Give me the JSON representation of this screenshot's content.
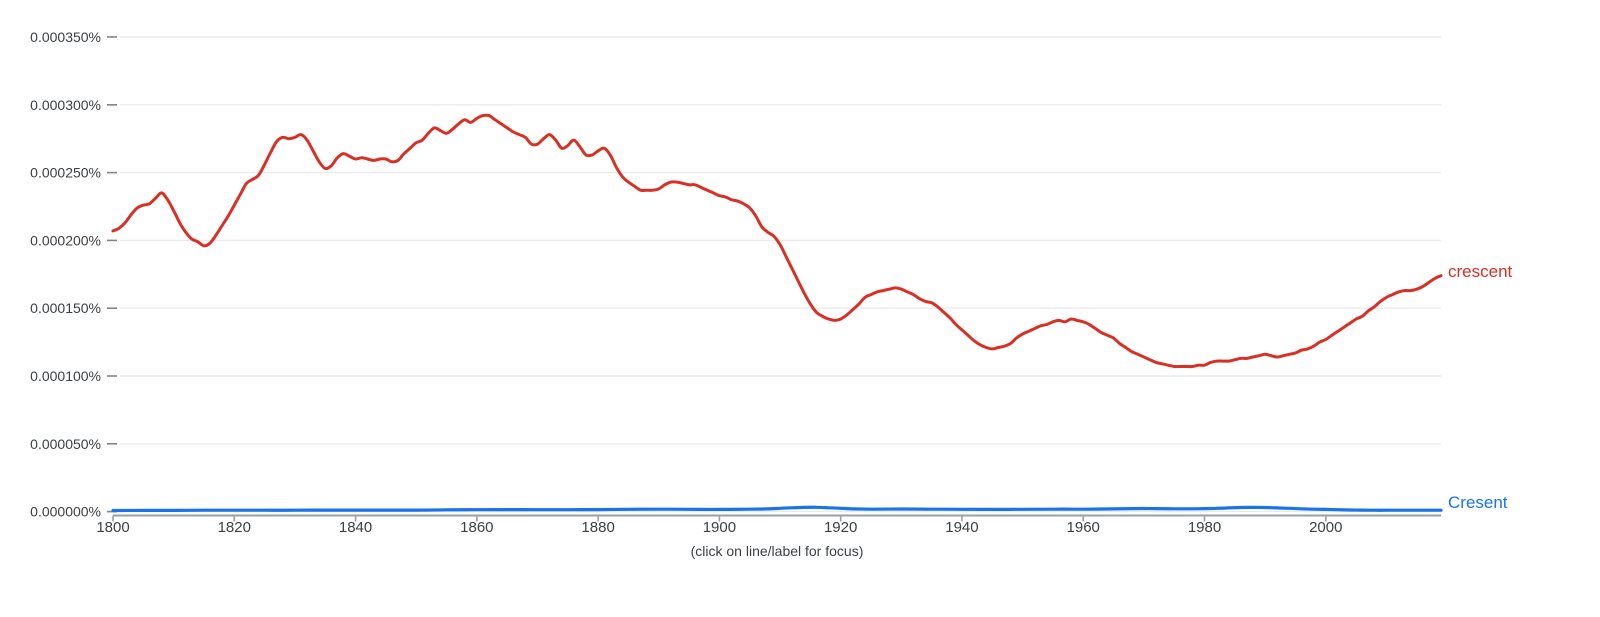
{
  "footer": {
    "hint": "(click on line/label for focus)"
  },
  "chart_data": {
    "type": "line",
    "title": "",
    "xlabel": "",
    "ylabel": "",
    "grid": true,
    "legend_position": "right-of-line-end",
    "x_range": [
      1800,
      2019
    ],
    "y_range_e6_percent": [
      0,
      350
    ],
    "x_ticks": [
      {
        "label": "1800",
        "year": 1800
      },
      {
        "label": "1820",
        "year": 1820
      },
      {
        "label": "1840",
        "year": 1840
      },
      {
        "label": "1860",
        "year": 1860
      },
      {
        "label": "1880",
        "year": 1880
      },
      {
        "label": "1900",
        "year": 1900
      },
      {
        "label": "1920",
        "year": 1920
      },
      {
        "label": "1940",
        "year": 1940
      },
      {
        "label": "1960",
        "year": 1960
      },
      {
        "label": "1980",
        "year": 1980
      },
      {
        "label": "2000",
        "year": 2000
      }
    ],
    "y_ticks": [
      {
        "label": "0.000350%",
        "value": 350
      },
      {
        "label": "0.000300%",
        "value": 300
      },
      {
        "label": "0.000250%",
        "value": 250
      },
      {
        "label": "0.000200%",
        "value": 200
      },
      {
        "label": "0.000150%",
        "value": 150
      },
      {
        "label": "0.000100%",
        "value": 100
      },
      {
        "label": "0.000050%",
        "value": 50
      },
      {
        "label": "0.000000%",
        "value": 0
      }
    ],
    "value_unit": "percent x 1e-6",
    "series": [
      {
        "name": "crescent",
        "color": "#d93025",
        "points": [
          [
            1800,
            207
          ],
          [
            1801,
            209
          ],
          [
            1802,
            213
          ],
          [
            1803,
            219
          ],
          [
            1804,
            224
          ],
          [
            1805,
            226
          ],
          [
            1806,
            227
          ],
          [
            1807,
            231
          ],
          [
            1808,
            235
          ],
          [
            1809,
            230
          ],
          [
            1810,
            222
          ],
          [
            1811,
            213
          ],
          [
            1812,
            206
          ],
          [
            1813,
            201
          ],
          [
            1814,
            199
          ],
          [
            1815,
            196
          ],
          [
            1816,
            198
          ],
          [
            1817,
            204
          ],
          [
            1818,
            211
          ],
          [
            1819,
            218
          ],
          [
            1820,
            226
          ],
          [
            1821,
            234
          ],
          [
            1822,
            242
          ],
          [
            1823,
            245
          ],
          [
            1824,
            248
          ],
          [
            1825,
            256
          ],
          [
            1826,
            265
          ],
          [
            1827,
            273
          ],
          [
            1828,
            276
          ],
          [
            1829,
            275
          ],
          [
            1830,
            276
          ],
          [
            1831,
            278
          ],
          [
            1832,
            274
          ],
          [
            1833,
            266
          ],
          [
            1834,
            258
          ],
          [
            1835,
            253
          ],
          [
            1836,
            255
          ],
          [
            1837,
            261
          ],
          [
            1838,
            264
          ],
          [
            1839,
            262
          ],
          [
            1840,
            260
          ],
          [
            1841,
            261
          ],
          [
            1842,
            260
          ],
          [
            1843,
            259
          ],
          [
            1844,
            260
          ],
          [
            1845,
            260
          ],
          [
            1846,
            258
          ],
          [
            1847,
            259
          ],
          [
            1848,
            264
          ],
          [
            1849,
            268
          ],
          [
            1850,
            272
          ],
          [
            1851,
            274
          ],
          [
            1852,
            279
          ],
          [
            1853,
            283
          ],
          [
            1854,
            281
          ],
          [
            1855,
            279
          ],
          [
            1856,
            282
          ],
          [
            1857,
            286
          ],
          [
            1858,
            289
          ],
          [
            1859,
            287
          ],
          [
            1860,
            290
          ],
          [
            1861,
            292
          ],
          [
            1862,
            292
          ],
          [
            1863,
            289
          ],
          [
            1864,
            286
          ],
          [
            1865,
            283
          ],
          [
            1866,
            280
          ],
          [
            1867,
            278
          ],
          [
            1868,
            276
          ],
          [
            1869,
            271
          ],
          [
            1870,
            271
          ],
          [
            1871,
            275
          ],
          [
            1872,
            278
          ],
          [
            1873,
            274
          ],
          [
            1874,
            268
          ],
          [
            1875,
            270
          ],
          [
            1876,
            274
          ],
          [
            1877,
            269
          ],
          [
            1878,
            263
          ],
          [
            1879,
            263
          ],
          [
            1880,
            266
          ],
          [
            1881,
            268
          ],
          [
            1882,
            263
          ],
          [
            1883,
            254
          ],
          [
            1884,
            247
          ],
          [
            1885,
            243
          ],
          [
            1886,
            240
          ],
          [
            1887,
            237
          ],
          [
            1888,
            237
          ],
          [
            1889,
            237
          ],
          [
            1890,
            238
          ],
          [
            1891,
            241
          ],
          [
            1892,
            243
          ],
          [
            1893,
            243
          ],
          [
            1894,
            242
          ],
          [
            1895,
            241
          ],
          [
            1896,
            241
          ],
          [
            1897,
            239
          ],
          [
            1898,
            237
          ],
          [
            1899,
            235
          ],
          [
            1900,
            233
          ],
          [
            1901,
            232
          ],
          [
            1902,
            230
          ],
          [
            1903,
            229
          ],
          [
            1904,
            227
          ],
          [
            1905,
            224
          ],
          [
            1906,
            218
          ],
          [
            1907,
            210
          ],
          [
            1908,
            206
          ],
          [
            1909,
            203
          ],
          [
            1910,
            197
          ],
          [
            1911,
            188
          ],
          [
            1912,
            179
          ],
          [
            1913,
            170
          ],
          [
            1914,
            161
          ],
          [
            1915,
            153
          ],
          [
            1916,
            147
          ],
          [
            1917,
            144
          ],
          [
            1918,
            142
          ],
          [
            1919,
            141
          ],
          [
            1920,
            142
          ],
          [
            1921,
            145
          ],
          [
            1922,
            149
          ],
          [
            1923,
            153
          ],
          [
            1924,
            158
          ],
          [
            1925,
            160
          ],
          [
            1926,
            162
          ],
          [
            1927,
            163
          ],
          [
            1928,
            164
          ],
          [
            1929,
            165
          ],
          [
            1930,
            164
          ],
          [
            1931,
            162
          ],
          [
            1932,
            160
          ],
          [
            1933,
            157
          ],
          [
            1934,
            155
          ],
          [
            1935,
            154
          ],
          [
            1936,
            151
          ],
          [
            1937,
            147
          ],
          [
            1938,
            143
          ],
          [
            1939,
            138
          ],
          [
            1940,
            134
          ],
          [
            1941,
            130
          ],
          [
            1942,
            126
          ],
          [
            1943,
            123
          ],
          [
            1944,
            121
          ],
          [
            1945,
            120
          ],
          [
            1946,
            121
          ],
          [
            1947,
            122
          ],
          [
            1948,
            124
          ],
          [
            1949,
            128
          ],
          [
            1950,
            131
          ],
          [
            1951,
            133
          ],
          [
            1952,
            135
          ],
          [
            1953,
            137
          ],
          [
            1954,
            138
          ],
          [
            1955,
            140
          ],
          [
            1956,
            141
          ],
          [
            1957,
            140
          ],
          [
            1958,
            142
          ],
          [
            1959,
            141
          ],
          [
            1960,
            140
          ],
          [
            1961,
            138
          ],
          [
            1962,
            135
          ],
          [
            1963,
            132
          ],
          [
            1964,
            130
          ],
          [
            1965,
            128
          ],
          [
            1966,
            124
          ],
          [
            1967,
            121
          ],
          [
            1968,
            118
          ],
          [
            1969,
            116
          ],
          [
            1970,
            114
          ],
          [
            1971,
            112
          ],
          [
            1972,
            110
          ],
          [
            1973,
            109
          ],
          [
            1974,
            108
          ],
          [
            1975,
            107
          ],
          [
            1976,
            107
          ],
          [
            1977,
            107
          ],
          [
            1978,
            107
          ],
          [
            1979,
            108
          ],
          [
            1980,
            108
          ],
          [
            1981,
            110
          ],
          [
            1982,
            111
          ],
          [
            1983,
            111
          ],
          [
            1984,
            111
          ],
          [
            1985,
            112
          ],
          [
            1986,
            113
          ],
          [
            1987,
            113
          ],
          [
            1988,
            114
          ],
          [
            1989,
            115
          ],
          [
            1990,
            116
          ],
          [
            1991,
            115
          ],
          [
            1992,
            114
          ],
          [
            1993,
            115
          ],
          [
            1994,
            116
          ],
          [
            1995,
            117
          ],
          [
            1996,
            119
          ],
          [
            1997,
            120
          ],
          [
            1998,
            122
          ],
          [
            1999,
            125
          ],
          [
            2000,
            127
          ],
          [
            2001,
            130
          ],
          [
            2002,
            133
          ],
          [
            2003,
            136
          ],
          [
            2004,
            139
          ],
          [
            2005,
            142
          ],
          [
            2006,
            144
          ],
          [
            2007,
            148
          ],
          [
            2008,
            151
          ],
          [
            2009,
            155
          ],
          [
            2010,
            158
          ],
          [
            2011,
            160
          ],
          [
            2012,
            162
          ],
          [
            2013,
            163
          ],
          [
            2014,
            163
          ],
          [
            2015,
            164
          ],
          [
            2016,
            166
          ],
          [
            2017,
            169
          ],
          [
            2018,
            172
          ],
          [
            2019,
            174
          ]
        ]
      },
      {
        "name": "Cresent",
        "color": "#1a73e8",
        "points": [
          [
            1800,
            0.8
          ],
          [
            1805,
            0.9
          ],
          [
            1810,
            0.9
          ],
          [
            1815,
            1.0
          ],
          [
            1820,
            1.0
          ],
          [
            1825,
            1.0
          ],
          [
            1830,
            1.0
          ],
          [
            1835,
            1.1
          ],
          [
            1840,
            1.1
          ],
          [
            1845,
            1.1
          ],
          [
            1850,
            1.1
          ],
          [
            1855,
            1.3
          ],
          [
            1860,
            1.4
          ],
          [
            1865,
            1.5
          ],
          [
            1870,
            1.4
          ],
          [
            1875,
            1.4
          ],
          [
            1880,
            1.5
          ],
          [
            1885,
            1.7
          ],
          [
            1890,
            1.8
          ],
          [
            1895,
            1.7
          ],
          [
            1900,
            1.6
          ],
          [
            1905,
            1.8
          ],
          [
            1908,
            2.0
          ],
          [
            1910,
            2.4
          ],
          [
            1912,
            2.8
          ],
          [
            1914,
            3.1
          ],
          [
            1916,
            3.2
          ],
          [
            1918,
            2.8
          ],
          [
            1920,
            2.4
          ],
          [
            1922,
            2.0
          ],
          [
            1925,
            1.8
          ],
          [
            1930,
            1.9
          ],
          [
            1935,
            1.8
          ],
          [
            1940,
            1.7
          ],
          [
            1945,
            1.6
          ],
          [
            1950,
            1.7
          ],
          [
            1955,
            1.8
          ],
          [
            1960,
            1.8
          ],
          [
            1965,
            2.0
          ],
          [
            1968,
            2.2
          ],
          [
            1970,
            2.3
          ],
          [
            1972,
            2.2
          ],
          [
            1975,
            2.1
          ],
          [
            1978,
            2.1
          ],
          [
            1980,
            2.2
          ],
          [
            1982,
            2.4
          ],
          [
            1984,
            2.7
          ],
          [
            1986,
            3.0
          ],
          [
            1987,
            3.1
          ],
          [
            1988,
            3.1
          ],
          [
            1990,
            3.0
          ],
          [
            1992,
            2.7
          ],
          [
            1994,
            2.4
          ],
          [
            1996,
            2.1
          ],
          [
            1998,
            1.8
          ],
          [
            2000,
            1.6
          ],
          [
            2002,
            1.4
          ],
          [
            2004,
            1.2
          ],
          [
            2006,
            1.1
          ],
          [
            2008,
            1.0
          ],
          [
            2010,
            1.0
          ],
          [
            2012,
            1.0
          ],
          [
            2014,
            1.0
          ],
          [
            2016,
            1.0
          ],
          [
            2019,
            1.0
          ]
        ]
      }
    ],
    "style": {
      "gridline_color": "#ebebeb",
      "axis_line_color": "#9aa0a6",
      "tick_color": "#80868b",
      "axis_text_color": "#3c4043"
    }
  }
}
